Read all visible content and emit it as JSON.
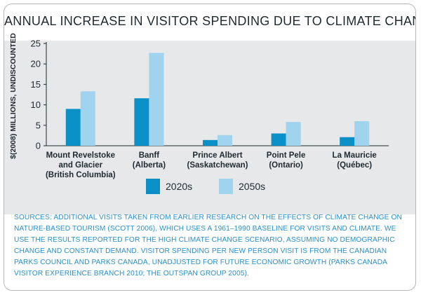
{
  "chart_data": {
    "type": "bar",
    "title": "ANNUAL INCREASE IN VISITOR SPENDING DUE TO CLIMATE CHANGE",
    "ylabel": "$(2008) MILLIONS, UNDISCOUNTED",
    "xlabel": "",
    "ylim": [
      0,
      25
    ],
    "yticks": [
      0,
      5,
      10,
      15,
      20,
      25
    ],
    "categories": [
      [
        "Mount Revelstoke",
        "and Glacier",
        "(British Columbia)"
      ],
      [
        "Banff",
        "(Alberta)"
      ],
      [
        "Prince Albert",
        "(Saskatchewan)"
      ],
      [
        "Point Pele",
        "(Ontario)"
      ],
      [
        "La Mauricie",
        "(Québec)"
      ]
    ],
    "series": [
      {
        "name": "2020s",
        "color": "#0a8fc6",
        "values": [
          9.0,
          11.6,
          1.4,
          3.0,
          2.1
        ]
      },
      {
        "name": "2050s",
        "color": "#9fd3ee",
        "values": [
          13.3,
          22.7,
          2.6,
          5.8,
          6.0
        ]
      }
    ],
    "legend_position": "bottom-center",
    "grid": false
  },
  "sources": "SOURCES: ADDITIONAL VISITS TAKEN FROM EARLIER RESEARCH ON THE EFFECTS OF CLIMATE CHANGE ON NATURE-BASED TOURISM (SCOTT 2006), WHICH USES A 1961–1990 BASELINE FOR VISITS AND CLIMATE. WE USE THE RESULTS REPORTED FOR THE HIGH CLIMATE CHANGE SCENARIO, ASSUMING NO DEMOGRAPHIC CHANGE AND CONSTANT DEMAND. VISITOR SPENDING PER NEW PERSON VISIT IS FROM THE CANADIAN PARKS COUNCIL AND PARKS CANADA, UNADJUSTED FOR FUTURE ECONOMIC GROWTH (PARKS CANADA VISITOR EXPERIENCE BRANCH 2010; THE OUTSPAN GROUP 2005)."
}
